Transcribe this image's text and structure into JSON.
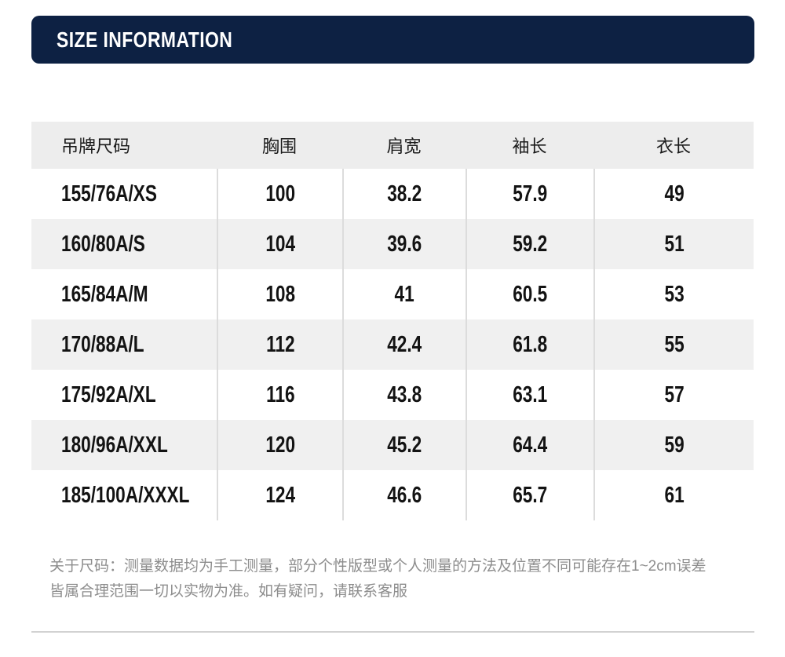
{
  "banner": {
    "title": "SIZE INFORMATION",
    "bg_color": "#0d2143",
    "text_color": "#ffffff"
  },
  "table": {
    "columns": {
      "size": "吊牌尺码",
      "chest": "胸围",
      "shoulder": "肩宽",
      "sleeve": "袖长",
      "length": "衣长"
    },
    "rows": [
      {
        "size": "155/76A/XS",
        "chest": "100",
        "shoulder": "38.2",
        "sleeve": "57.9",
        "length": "49"
      },
      {
        "size": "160/80A/S",
        "chest": "104",
        "shoulder": "39.6",
        "sleeve": "59.2",
        "length": "51"
      },
      {
        "size": "165/84A/M",
        "chest": "108",
        "shoulder": "41",
        "sleeve": "60.5",
        "length": "53"
      },
      {
        "size": "170/88A/L",
        "chest": "112",
        "shoulder": "42.4",
        "sleeve": "61.8",
        "length": "55"
      },
      {
        "size": "175/92A/XL",
        "chest": "116",
        "shoulder": "43.8",
        "sleeve": "63.1",
        "length": "57"
      },
      {
        "size": "180/96A/XXL",
        "chest": "120",
        "shoulder": "45.2",
        "sleeve": "64.4",
        "length": "59"
      },
      {
        "size": "185/100A/XXXL",
        "chest": "124",
        "shoulder": "46.6",
        "sleeve": "65.7",
        "length": "61"
      }
    ],
    "header_bg": "#ededed",
    "stripe_bg": "#f0f0f0",
    "divider_color": "#dcdcdc"
  },
  "note": {
    "line1": "关于尺码：测量数据均为手工测量，部分个性版型或个人测量的方法及位置不同可能存在1~2cm误差",
    "line2": "皆属合理范围一切以实物为准。如有疑问，请联系客服"
  }
}
